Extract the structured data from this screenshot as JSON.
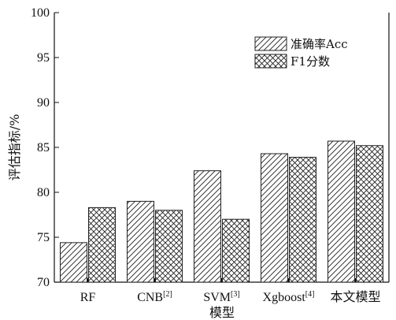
{
  "chart_data": {
    "type": "bar",
    "categories": [
      "RF",
      "CNB",
      "SVM",
      "Xgboost",
      "本文模型"
    ],
    "category_refs": [
      "",
      "[2]",
      "[3]",
      "[4]",
      ""
    ],
    "series": [
      {
        "name": "准确率Acc",
        "values": [
          74.4,
          79.0,
          82.4,
          84.3,
          85.7
        ],
        "pattern": "diagonal-hatch"
      },
      {
        "name": "F1分数",
        "values": [
          78.3,
          78.0,
          77.0,
          83.9,
          85.2
        ],
        "pattern": "cross-hatch"
      }
    ],
    "xlabel": "模型",
    "ylabel": "评估指标/%",
    "ylim": [
      70,
      100
    ],
    "yticks": [
      70,
      75,
      80,
      85,
      90,
      95,
      100
    ],
    "grid": false,
    "legend_position": "top-right"
  }
}
